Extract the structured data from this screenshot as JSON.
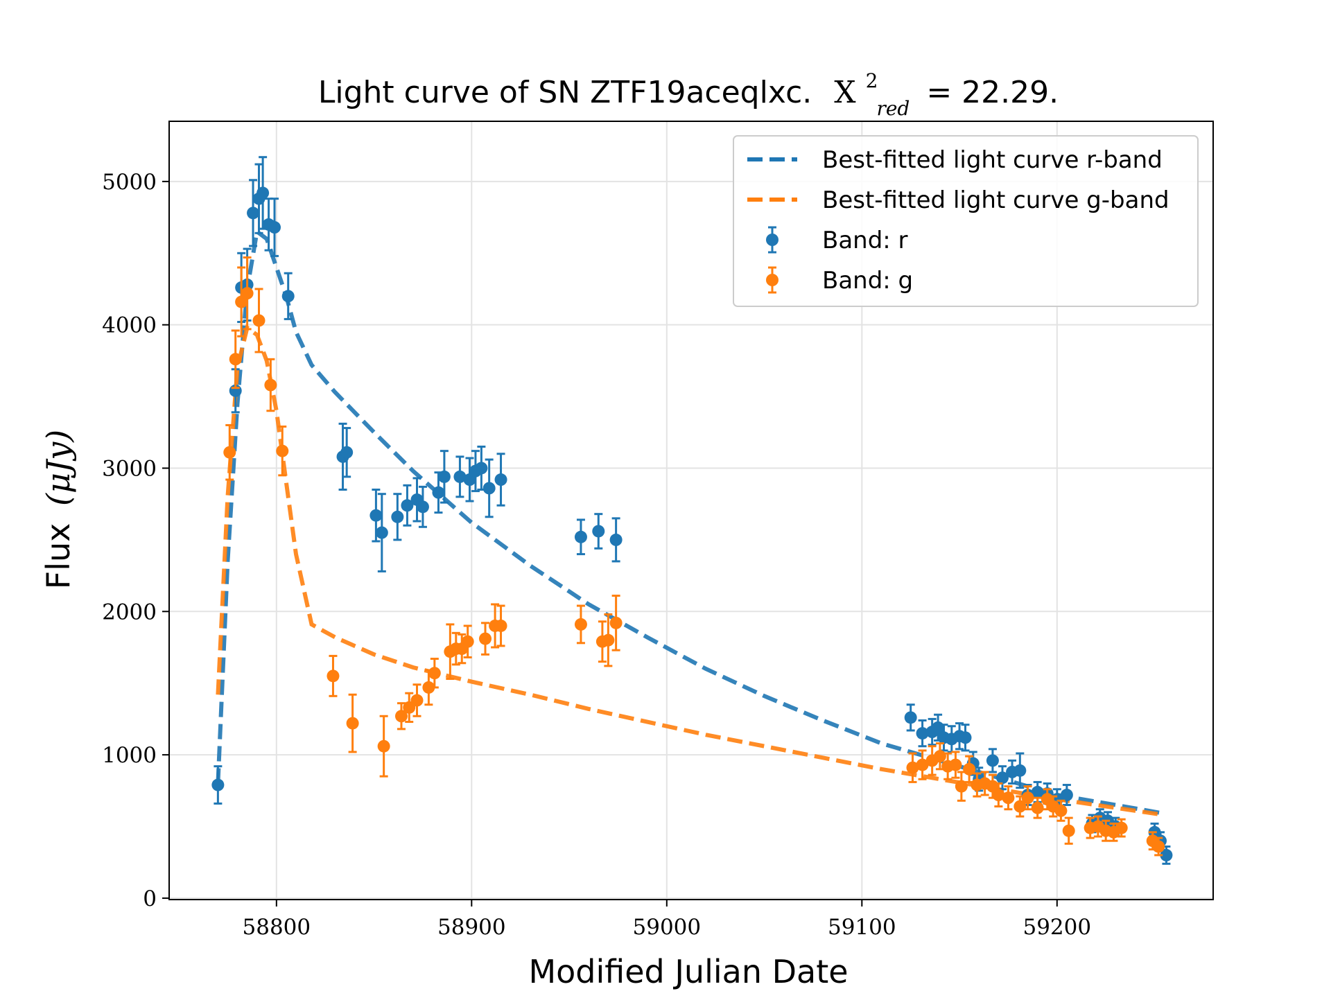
{
  "chart_data": {
    "type": "scatter",
    "title": {
      "main": "Light curve of SN ZTF19aceqlxc.",
      "chi_symbol": "X",
      "chi_sup": "2",
      "chi_sub": "red",
      "chi_value": "= 22.29."
    },
    "xlabel": "Modified Julian Date",
    "ylabel": {
      "text": "Flux",
      "unit": "(μJy)"
    },
    "xlim": [
      58745,
      59280
    ],
    "ylim": [
      -10,
      5420
    ],
    "x_ticks": [
      58800,
      58900,
      59000,
      59100,
      59200
    ],
    "x_tick_labels": [
      "58800",
      "58900",
      "59000",
      "59100",
      "59200"
    ],
    "y_ticks": [
      0,
      1000,
      2000,
      3000,
      4000,
      5000
    ],
    "y_tick_labels": [
      "0",
      "1000",
      "2000",
      "3000",
      "4000",
      "5000"
    ],
    "grid": true,
    "legend_position": "top-right",
    "colors": {
      "r": "#1f77b4",
      "g": "#ff7f0e"
    },
    "legend": [
      {
        "label": "Best-fitted light curve r-band",
        "kind": "line",
        "color": "#1f77b4"
      },
      {
        "label": "Best-fitted light curve g-band",
        "kind": "line",
        "color": "#ff7f0e"
      },
      {
        "label": "Band: r",
        "kind": "errorbar",
        "color": "#1f77b4"
      },
      {
        "label": "Band: g",
        "kind": "errorbar",
        "color": "#ff7f0e"
      }
    ],
    "fit_lines": [
      {
        "band": "r",
        "color": "#1f77b4",
        "points": [
          [
            58770,
            800
          ],
          [
            58775,
            2350
          ],
          [
            58780,
            3450
          ],
          [
            58785,
            4250
          ],
          [
            58790,
            4650
          ],
          [
            58795,
            4600
          ],
          [
            58800,
            4400
          ],
          [
            58805,
            4200
          ],
          [
            58810,
            3950
          ],
          [
            58818,
            3720
          ],
          [
            58830,
            3530
          ],
          [
            58850,
            3250
          ],
          [
            58870,
            2980
          ],
          [
            58900,
            2620
          ],
          [
            58930,
            2320
          ],
          [
            58960,
            2050
          ],
          [
            58990,
            1820
          ],
          [
            59020,
            1600
          ],
          [
            59050,
            1410
          ],
          [
            59080,
            1240
          ],
          [
            59110,
            1080
          ],
          [
            59140,
            960
          ],
          [
            59170,
            840
          ],
          [
            59200,
            720
          ],
          [
            59230,
            650
          ],
          [
            59255,
            590
          ]
        ]
      },
      {
        "band": "g",
        "color": "#ff7f0e",
        "points": [
          [
            58770,
            1420
          ],
          [
            58775,
            2800
          ],
          [
            58780,
            3700
          ],
          [
            58785,
            3980
          ],
          [
            58790,
            3930
          ],
          [
            58795,
            3750
          ],
          [
            58800,
            3400
          ],
          [
            58805,
            2900
          ],
          [
            58810,
            2400
          ],
          [
            58818,
            1910
          ],
          [
            58830,
            1820
          ],
          [
            58850,
            1700
          ],
          [
            58870,
            1610
          ],
          [
            58900,
            1510
          ],
          [
            58930,
            1420
          ],
          [
            58960,
            1320
          ],
          [
            58990,
            1230
          ],
          [
            59020,
            1140
          ],
          [
            59050,
            1060
          ],
          [
            59080,
            980
          ],
          [
            59110,
            900
          ],
          [
            59140,
            830
          ],
          [
            59170,
            760
          ],
          [
            59200,
            690
          ],
          [
            59230,
            630
          ],
          [
            59255,
            580
          ]
        ]
      }
    ],
    "series": [
      {
        "band": "r",
        "color": "#1f77b4",
        "points": [
          {
            "x": 58770,
            "y": 790,
            "err": 130
          },
          {
            "x": 58779,
            "y": 3540,
            "err": 150
          },
          {
            "x": 58782,
            "y": 4260,
            "err": 240
          },
          {
            "x": 58785,
            "y": 4280,
            "err": 250
          },
          {
            "x": 58788,
            "y": 4780,
            "err": 230
          },
          {
            "x": 58791,
            "y": 4880,
            "err": 240
          },
          {
            "x": 58793,
            "y": 4920,
            "err": 250
          },
          {
            "x": 58796,
            "y": 4700,
            "err": 180
          },
          {
            "x": 58799,
            "y": 4680,
            "err": 200
          },
          {
            "x": 58806,
            "y": 4200,
            "err": 160
          },
          {
            "x": 58834,
            "y": 3080,
            "err": 230
          },
          {
            "x": 58836,
            "y": 3110,
            "err": 170
          },
          {
            "x": 58851,
            "y": 2670,
            "err": 180
          },
          {
            "x": 58854,
            "y": 2550,
            "err": 270
          },
          {
            "x": 58862,
            "y": 2660,
            "err": 160
          },
          {
            "x": 58867,
            "y": 2740,
            "err": 140
          },
          {
            "x": 58872,
            "y": 2780,
            "err": 150
          },
          {
            "x": 58875,
            "y": 2730,
            "err": 140
          },
          {
            "x": 58883,
            "y": 2830,
            "err": 140
          },
          {
            "x": 58886,
            "y": 2940,
            "err": 180
          },
          {
            "x": 58894,
            "y": 2940,
            "err": 140
          },
          {
            "x": 58899,
            "y": 2920,
            "err": 150
          },
          {
            "x": 58902,
            "y": 2980,
            "err": 140
          },
          {
            "x": 58905,
            "y": 3000,
            "err": 150
          },
          {
            "x": 58909,
            "y": 2860,
            "err": 200
          },
          {
            "x": 58915,
            "y": 2920,
            "err": 180
          },
          {
            "x": 58956,
            "y": 2520,
            "err": 120
          },
          {
            "x": 58965,
            "y": 2560,
            "err": 120
          },
          {
            "x": 58974,
            "y": 2500,
            "err": 150
          },
          {
            "x": 59125,
            "y": 1260,
            "err": 90
          },
          {
            "x": 59131,
            "y": 1150,
            "err": 90
          },
          {
            "x": 59136,
            "y": 1160,
            "err": 90
          },
          {
            "x": 59139,
            "y": 1190,
            "err": 90
          },
          {
            "x": 59142,
            "y": 1120,
            "err": 90
          },
          {
            "x": 59146,
            "y": 1110,
            "err": 90
          },
          {
            "x": 59150,
            "y": 1130,
            "err": 90
          },
          {
            "x": 59153,
            "y": 1120,
            "err": 90
          },
          {
            "x": 59157,
            "y": 940,
            "err": 80
          },
          {
            "x": 59160,
            "y": 830,
            "err": 80
          },
          {
            "x": 59167,
            "y": 960,
            "err": 80
          },
          {
            "x": 59172,
            "y": 840,
            "err": 80
          },
          {
            "x": 59177,
            "y": 880,
            "err": 80
          },
          {
            "x": 59181,
            "y": 890,
            "err": 120
          },
          {
            "x": 59185,
            "y": 720,
            "err": 70
          },
          {
            "x": 59190,
            "y": 740,
            "err": 70
          },
          {
            "x": 59195,
            "y": 730,
            "err": 70
          },
          {
            "x": 59200,
            "y": 690,
            "err": 70
          },
          {
            "x": 59205,
            "y": 720,
            "err": 70
          },
          {
            "x": 59218,
            "y": 520,
            "err": 60
          },
          {
            "x": 59222,
            "y": 560,
            "err": 60
          },
          {
            "x": 59226,
            "y": 540,
            "err": 60
          },
          {
            "x": 59230,
            "y": 500,
            "err": 60
          },
          {
            "x": 59250,
            "y": 460,
            "err": 60
          },
          {
            "x": 59253,
            "y": 400,
            "err": 60
          },
          {
            "x": 59256,
            "y": 300,
            "err": 60
          }
        ]
      },
      {
        "band": "g",
        "color": "#ff7f0e",
        "points": [
          {
            "x": 58776,
            "y": 3110,
            "err": 190
          },
          {
            "x": 58779,
            "y": 3760,
            "err": 200
          },
          {
            "x": 58782,
            "y": 4160,
            "err": 240
          },
          {
            "x": 58785,
            "y": 4220,
            "err": 250
          },
          {
            "x": 58791,
            "y": 4030,
            "err": 220
          },
          {
            "x": 58797,
            "y": 3580,
            "err": 180
          },
          {
            "x": 58803,
            "y": 3120,
            "err": 170
          },
          {
            "x": 58829,
            "y": 1550,
            "err": 140
          },
          {
            "x": 58839,
            "y": 1220,
            "err": 200
          },
          {
            "x": 58855,
            "y": 1060,
            "err": 210
          },
          {
            "x": 58864,
            "y": 1270,
            "err": 90
          },
          {
            "x": 58868,
            "y": 1330,
            "err": 100
          },
          {
            "x": 58872,
            "y": 1380,
            "err": 110
          },
          {
            "x": 58878,
            "y": 1470,
            "err": 120
          },
          {
            "x": 58881,
            "y": 1570,
            "err": 100
          },
          {
            "x": 58889,
            "y": 1720,
            "err": 190
          },
          {
            "x": 58892,
            "y": 1740,
            "err": 110
          },
          {
            "x": 58895,
            "y": 1740,
            "err": 100
          },
          {
            "x": 58898,
            "y": 1790,
            "err": 110
          },
          {
            "x": 58907,
            "y": 1810,
            "err": 110
          },
          {
            "x": 58912,
            "y": 1900,
            "err": 150
          },
          {
            "x": 58915,
            "y": 1900,
            "err": 140
          },
          {
            "x": 58956,
            "y": 1910,
            "err": 130
          },
          {
            "x": 58967,
            "y": 1790,
            "err": 140
          },
          {
            "x": 58970,
            "y": 1800,
            "err": 180
          },
          {
            "x": 58974,
            "y": 1920,
            "err": 190
          },
          {
            "x": 59126,
            "y": 910,
            "err": 100
          },
          {
            "x": 59131,
            "y": 930,
            "err": 100
          },
          {
            "x": 59136,
            "y": 960,
            "err": 100
          },
          {
            "x": 59140,
            "y": 990,
            "err": 90
          },
          {
            "x": 59144,
            "y": 920,
            "err": 90
          },
          {
            "x": 59148,
            "y": 930,
            "err": 90
          },
          {
            "x": 59151,
            "y": 780,
            "err": 100
          },
          {
            "x": 59155,
            "y": 900,
            "err": 90
          },
          {
            "x": 59159,
            "y": 790,
            "err": 80
          },
          {
            "x": 59163,
            "y": 800,
            "err": 80
          },
          {
            "x": 59167,
            "y": 780,
            "err": 80
          },
          {
            "x": 59170,
            "y": 720,
            "err": 80
          },
          {
            "x": 59175,
            "y": 700,
            "err": 80
          },
          {
            "x": 59181,
            "y": 640,
            "err": 70
          },
          {
            "x": 59185,
            "y": 700,
            "err": 80
          },
          {
            "x": 59190,
            "y": 630,
            "err": 70
          },
          {
            "x": 59195,
            "y": 690,
            "err": 70
          },
          {
            "x": 59198,
            "y": 640,
            "err": 70
          },
          {
            "x": 59202,
            "y": 610,
            "err": 70
          },
          {
            "x": 59206,
            "y": 470,
            "err": 90
          },
          {
            "x": 59217,
            "y": 490,
            "err": 70
          },
          {
            "x": 59221,
            "y": 500,
            "err": 70
          },
          {
            "x": 59225,
            "y": 470,
            "err": 70
          },
          {
            "x": 59229,
            "y": 460,
            "err": 60
          },
          {
            "x": 59233,
            "y": 490,
            "err": 60
          },
          {
            "x": 59249,
            "y": 400,
            "err": 60
          },
          {
            "x": 59252,
            "y": 360,
            "err": 60
          }
        ]
      }
    ]
  }
}
